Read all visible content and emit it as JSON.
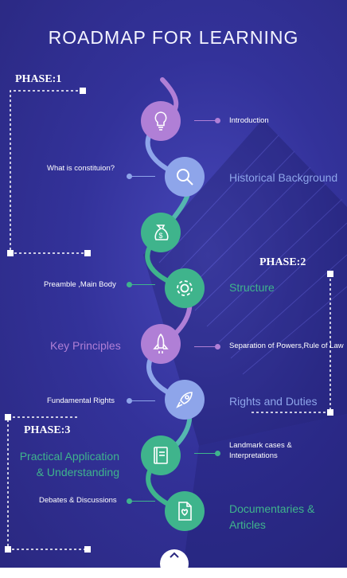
{
  "title": "ROADMAP FOR LEARNING",
  "phases": [
    "PHASE:1",
    "PHASE:2",
    "PHASE:3"
  ],
  "steps": [
    {
      "icon": "lightbulb-icon",
      "color": "#b07fd6",
      "label": "Introduction"
    },
    {
      "icon": "magnifier-icon",
      "color": "#8ea5ea",
      "label": "What is constituion?",
      "heading": "Historical Background"
    },
    {
      "icon": "money-bag-icon",
      "color": "#3fb48c"
    },
    {
      "icon": "gear-icon",
      "color": "#3fb48c",
      "label": "Preamble ,Main Body",
      "heading": "Structure"
    },
    {
      "icon": "rocket-launch-icon",
      "color": "#b07fd6",
      "label": "Separation of Powers,Rule of Law",
      "heading": "Key Principles"
    },
    {
      "icon": "rocket-icon",
      "color": "#8ea5ea",
      "label": "Fundamental Rights",
      "heading": "Rights and Duties"
    },
    {
      "icon": "book-icon",
      "color": "#3fb48c",
      "label": "Landmark cases & Interpretations",
      "heading": "Practical Application & Understanding"
    },
    {
      "icon": "document-icon",
      "color": "#3fb48c",
      "label": "Debates & Discussions",
      "heading": "Documentaries & Articles"
    }
  ],
  "colors": {
    "purple": "#b07fd6",
    "blue": "#8ea5ea",
    "green": "#3fb48c",
    "background": "#33329a"
  },
  "scroll_icon": "chevron-up-icon"
}
